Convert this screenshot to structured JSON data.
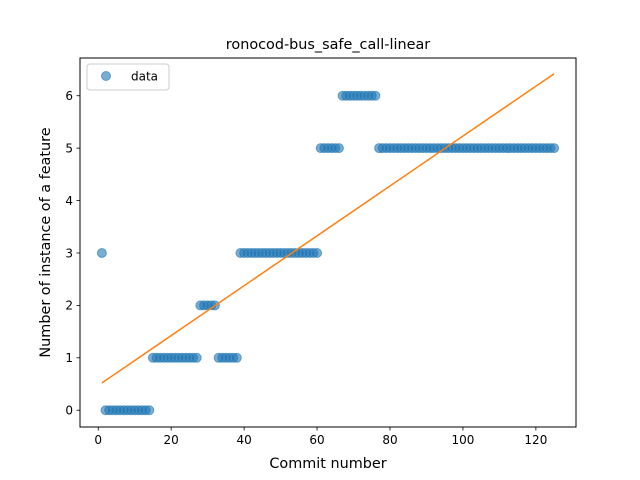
{
  "chart_data": {
    "type": "scatter",
    "title": "ronocod-bus_safe_call-linear",
    "xlabel": "Commit number",
    "ylabel": "Number of instance of a feature",
    "xlim": [
      -5,
      131
    ],
    "ylim": [
      -0.32,
      6.72
    ],
    "x_ticks": [
      0,
      20,
      40,
      60,
      80,
      100,
      120
    ],
    "y_ticks": [
      0,
      1,
      2,
      3,
      4,
      5,
      6
    ],
    "grid": false,
    "legend": {
      "position": "top-left",
      "entries": [
        "data"
      ]
    },
    "series": [
      {
        "name": "data",
        "marker": "circle",
        "color": "#1f77b4",
        "points": [
          [
            1,
            3
          ],
          [
            2,
            0
          ],
          [
            3,
            0
          ],
          [
            4,
            0
          ],
          [
            5,
            0
          ],
          [
            6,
            0
          ],
          [
            7,
            0
          ],
          [
            8,
            0
          ],
          [
            9,
            0
          ],
          [
            10,
            0
          ],
          [
            11,
            0
          ],
          [
            12,
            0
          ],
          [
            13,
            0
          ],
          [
            14,
            0
          ],
          [
            15,
            1
          ],
          [
            16,
            1
          ],
          [
            17,
            1
          ],
          [
            18,
            1
          ],
          [
            19,
            1
          ],
          [
            20,
            1
          ],
          [
            21,
            1
          ],
          [
            22,
            1
          ],
          [
            23,
            1
          ],
          [
            24,
            1
          ],
          [
            25,
            1
          ],
          [
            26,
            1
          ],
          [
            27,
            1
          ],
          [
            28,
            2
          ],
          [
            29,
            2
          ],
          [
            30,
            2
          ],
          [
            31,
            2
          ],
          [
            32,
            2
          ],
          [
            33,
            1
          ],
          [
            34,
            1
          ],
          [
            35,
            1
          ],
          [
            36,
            1
          ],
          [
            37,
            1
          ],
          [
            38,
            1
          ],
          [
            39,
            3
          ],
          [
            40,
            3
          ],
          [
            41,
            3
          ],
          [
            42,
            3
          ],
          [
            43,
            3
          ],
          [
            44,
            3
          ],
          [
            45,
            3
          ],
          [
            46,
            3
          ],
          [
            47,
            3
          ],
          [
            48,
            3
          ],
          [
            49,
            3
          ],
          [
            50,
            3
          ],
          [
            51,
            3
          ],
          [
            52,
            3
          ],
          [
            53,
            3
          ],
          [
            54,
            3
          ],
          [
            55,
            3
          ],
          [
            56,
            3
          ],
          [
            57,
            3
          ],
          [
            58,
            3
          ],
          [
            59,
            3
          ],
          [
            60,
            3
          ],
          [
            61,
            5
          ],
          [
            62,
            5
          ],
          [
            63,
            5
          ],
          [
            64,
            5
          ],
          [
            65,
            5
          ],
          [
            66,
            5
          ],
          [
            67,
            6
          ],
          [
            68,
            6
          ],
          [
            69,
            6
          ],
          [
            70,
            6
          ],
          [
            71,
            6
          ],
          [
            72,
            6
          ],
          [
            73,
            6
          ],
          [
            74,
            6
          ],
          [
            75,
            6
          ],
          [
            76,
            6
          ],
          [
            77,
            5
          ],
          [
            78,
            5
          ],
          [
            79,
            5
          ],
          [
            80,
            5
          ],
          [
            81,
            5
          ],
          [
            82,
            5
          ],
          [
            83,
            5
          ],
          [
            84,
            5
          ],
          [
            85,
            5
          ],
          [
            86,
            5
          ],
          [
            87,
            5
          ],
          [
            88,
            5
          ],
          [
            89,
            5
          ],
          [
            90,
            5
          ],
          [
            91,
            5
          ],
          [
            92,
            5
          ],
          [
            93,
            5
          ],
          [
            94,
            5
          ],
          [
            95,
            5
          ],
          [
            96,
            5
          ],
          [
            97,
            5
          ],
          [
            98,
            5
          ],
          [
            99,
            5
          ],
          [
            100,
            5
          ],
          [
            101,
            5
          ],
          [
            102,
            5
          ],
          [
            103,
            5
          ],
          [
            104,
            5
          ],
          [
            105,
            5
          ],
          [
            106,
            5
          ],
          [
            107,
            5
          ],
          [
            108,
            5
          ],
          [
            109,
            5
          ],
          [
            110,
            5
          ],
          [
            111,
            5
          ],
          [
            112,
            5
          ],
          [
            113,
            5
          ],
          [
            114,
            5
          ],
          [
            115,
            5
          ],
          [
            116,
            5
          ],
          [
            117,
            5
          ],
          [
            118,
            5
          ],
          [
            119,
            5
          ],
          [
            120,
            5
          ],
          [
            121,
            5
          ],
          [
            122,
            5
          ],
          [
            123,
            5
          ],
          [
            124,
            5
          ],
          [
            125,
            5
          ]
        ]
      },
      {
        "marker": "line",
        "color": "#ff7f0e",
        "points": [
          [
            1,
            0.52
          ],
          [
            125,
            6.42
          ]
        ]
      }
    ]
  }
}
